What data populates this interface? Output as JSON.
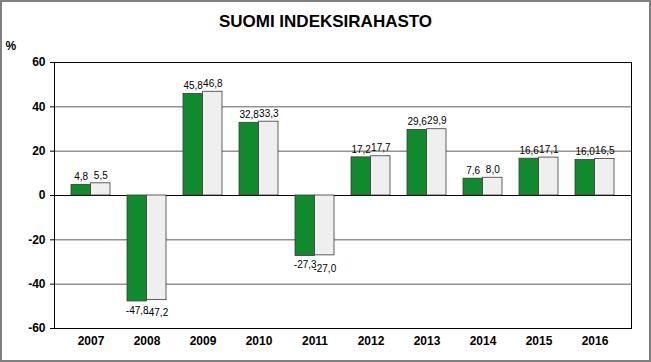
{
  "chart_data": {
    "type": "bar",
    "title": "SUOMI INDEKSIRAHASTO",
    "y_label": "%",
    "categories": [
      "2007",
      "2008",
      "2009",
      "2010",
      "2011",
      "2012",
      "2013",
      "2014",
      "2015",
      "2016"
    ],
    "series": [
      {
        "color": "#118a2e",
        "values": [
          4.8,
          -47.8,
          45.8,
          32.8,
          -27.3,
          17.2,
          29.6,
          7.6,
          16.6,
          16.0
        ],
        "value_labels": [
          "4,8",
          "-47,8",
          "45,8",
          "32,8",
          "-27,3",
          "17,2",
          "29,6",
          "7,6",
          "16,6",
          "16,0"
        ]
      },
      {
        "color": "#efefef",
        "values": [
          5.5,
          -47.2,
          46.8,
          33.3,
          -27.0,
          17.7,
          29.9,
          8.0,
          17.1,
          16.5
        ],
        "value_labels": [
          "5,5",
          "-47,2",
          "46,8",
          "33,3",
          "-27,0",
          "17,7",
          "29,9",
          "8,0",
          "17,1",
          "16,5"
        ]
      }
    ],
    "ylim": [
      -60,
      60
    ],
    "yticks": [
      -60,
      -40,
      -20,
      0,
      20,
      40,
      60
    ],
    "grid": true,
    "data_labels": true
  }
}
